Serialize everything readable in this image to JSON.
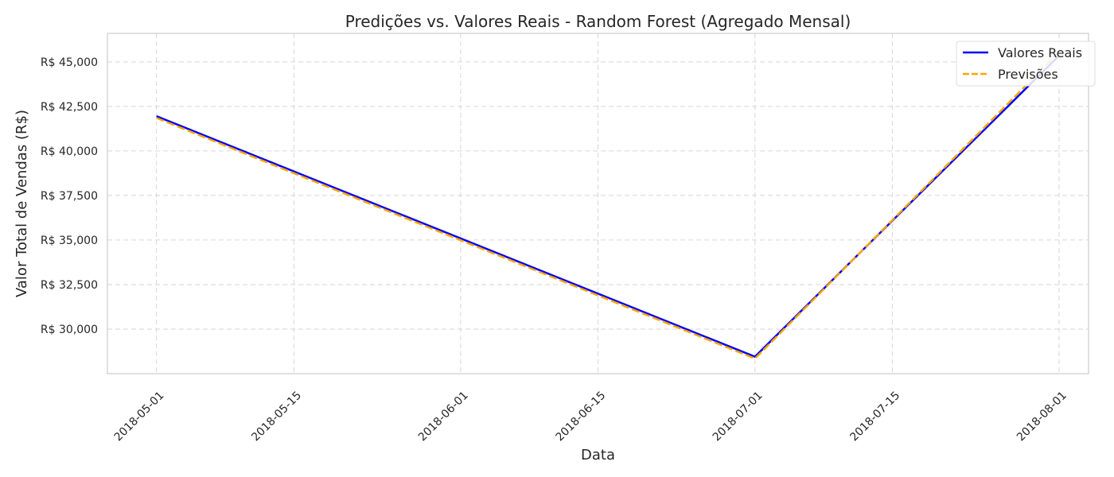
{
  "chart_data": {
    "type": "line",
    "title": "Predições vs. Valores Reais - Random Forest (Agregado Mensal)",
    "xlabel": "Data",
    "ylabel": "Valor Total de Vendas (R$)",
    "x": [
      "2018-05-01",
      "2018-07-01",
      "2018-08-01"
    ],
    "series": [
      {
        "name": "Valores Reais",
        "color": "#0000ff",
        "line_style": "solid",
        "values": [
          41950,
          28450,
          45350
        ]
      },
      {
        "name": "Previsões",
        "color": "#ffa500",
        "line_style": "dashed",
        "values": [
          41850,
          28350,
          45550
        ]
      }
    ],
    "x_ticks": [
      "2018-05-01",
      "2018-05-15",
      "2018-06-01",
      "2018-06-15",
      "2018-07-01",
      "2018-07-15",
      "2018-08-01"
    ],
    "y_ticks": [
      30000,
      32500,
      35000,
      37500,
      40000,
      42500,
      45000
    ],
    "y_tick_labels": [
      "R$ 30,000",
      "R$ 32,500",
      "R$ 35,000",
      "R$ 37,500",
      "R$ 40,000",
      "R$ 42,500",
      "R$ 45,000"
    ],
    "xlim": [
      "2018-04-26",
      "2018-08-04"
    ],
    "ylim": [
      27500,
      46600
    ],
    "grid": true,
    "legend_position": "top-right"
  }
}
